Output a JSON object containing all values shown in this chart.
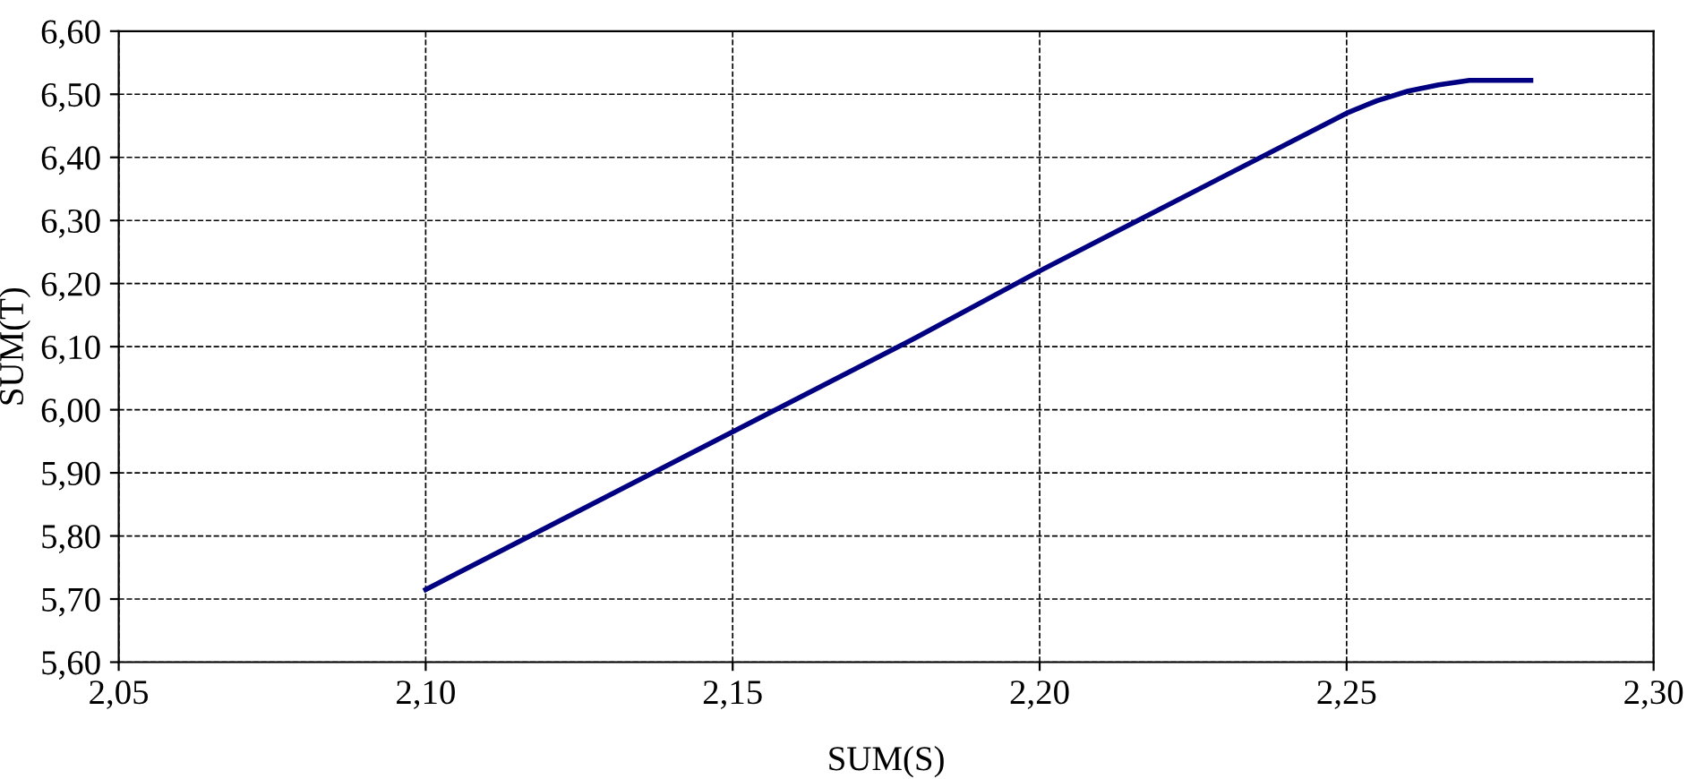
{
  "chart_data": {
    "type": "line",
    "xlabel": "SUM(S)",
    "ylabel": "SUM(T)",
    "series": [
      {
        "color": "#000080",
        "x": [
          2.1,
          2.12,
          2.15,
          2.18,
          2.2,
          2.23,
          2.25,
          2.255,
          2.26,
          2.265,
          2.27,
          2.28
        ],
        "values": [
          5.715,
          5.815,
          5.965,
          6.115,
          6.22,
          6.37,
          6.47,
          6.49,
          6.505,
          6.515,
          6.522,
          6.522
        ]
      }
    ],
    "xlim": [
      2.05,
      2.3
    ],
    "xticks": [
      {
        "value": 2.05,
        "label": "2,05"
      },
      {
        "value": 2.1,
        "label": "2,10"
      },
      {
        "value": 2.15,
        "label": "2,15"
      },
      {
        "value": 2.2,
        "label": "2,20"
      },
      {
        "value": 2.25,
        "label": "2,25"
      },
      {
        "value": 2.3,
        "label": "2,30"
      }
    ],
    "ylim": [
      5.6,
      6.6
    ],
    "yticks": [
      {
        "value": 5.6,
        "label": "5,60"
      },
      {
        "value": 5.7,
        "label": "5,70"
      },
      {
        "value": 5.8,
        "label": "5,80"
      },
      {
        "value": 5.9,
        "label": "5,90"
      },
      {
        "value": 6.0,
        "label": "6,00"
      },
      {
        "value": 6.1,
        "label": "6,10"
      },
      {
        "value": 6.2,
        "label": "6,20"
      },
      {
        "value": 6.3,
        "label": "6,30"
      },
      {
        "value": 6.4,
        "label": "6,40"
      },
      {
        "value": 6.5,
        "label": "6,50"
      },
      {
        "value": 6.6,
        "label": "6,60"
      }
    ],
    "grid": true,
    "line_style": "solid",
    "marker": "none"
  }
}
